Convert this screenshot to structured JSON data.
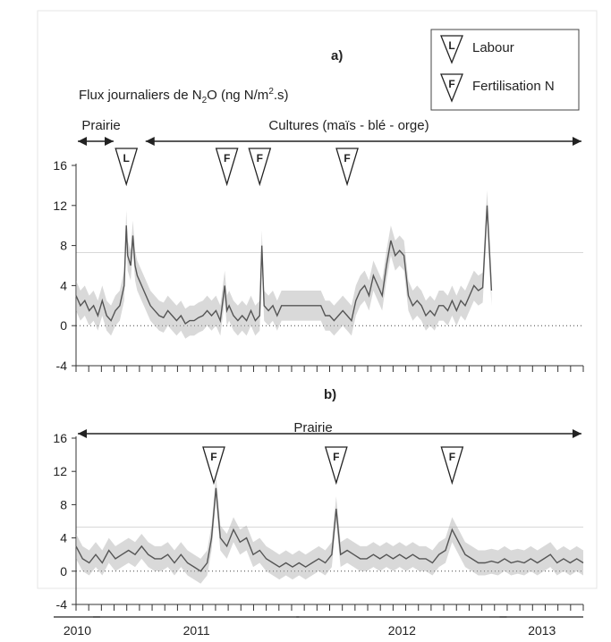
{
  "chart_data": [
    {
      "type": "line",
      "title": "a)",
      "ylabel_pre": "Flux journaliers de N",
      "ylabel_sub": "2",
      "ylabel_mid": "O (ng N/m",
      "ylabel_sup": "2",
      "ylabel_post": ".s)",
      "yticks": [
        16,
        12,
        8,
        4,
        0,
        -4
      ],
      "ylim": [
        -4,
        16
      ],
      "xlim": [
        0,
        1160
      ],
      "periods": [
        {
          "label": "Prairie",
          "x0": 0,
          "x1": 90
        },
        {
          "label": "Cultures (maïs - blé - orge)",
          "x0": 155,
          "x1": 1160
        }
      ],
      "events": [
        {
          "letter": "L",
          "x": 115
        },
        {
          "letter": "F",
          "x": 345
        },
        {
          "letter": "F",
          "x": 420
        },
        {
          "letter": "F",
          "x": 620
        }
      ],
      "legend": [
        {
          "letter": "L",
          "label": "Labour"
        },
        {
          "letter": "F",
          "label": "Fertilisation N"
        }
      ],
      "series": [
        {
          "values": [
            [
              0,
              3
            ],
            [
              10,
              2
            ],
            [
              20,
              2.5
            ],
            [
              30,
              1.5
            ],
            [
              40,
              2
            ],
            [
              50,
              1
            ],
            [
              60,
              2.5
            ],
            [
              70,
              1
            ],
            [
              80,
              0.5
            ],
            [
              90,
              1.5
            ],
            [
              100,
              2
            ],
            [
              110,
              4
            ],
            [
              115,
              10
            ],
            [
              118,
              7
            ],
            [
              125,
              6
            ],
            [
              130,
              9
            ],
            [
              135,
              6
            ],
            [
              140,
              5
            ],
            [
              150,
              4
            ],
            [
              160,
              3
            ],
            [
              170,
              2
            ],
            [
              180,
              1.5
            ],
            [
              190,
              1
            ],
            [
              200,
              0.8
            ],
            [
              210,
              1.5
            ],
            [
              220,
              1
            ],
            [
              230,
              0.5
            ],
            [
              240,
              1
            ],
            [
              250,
              0.2
            ],
            [
              260,
              0.5
            ],
            [
              270,
              0.5
            ],
            [
              280,
              0.8
            ],
            [
              290,
              1
            ],
            [
              300,
              1.5
            ],
            [
              310,
              1
            ],
            [
              320,
              1.5
            ],
            [
              330,
              0.5
            ],
            [
              340,
              4
            ],
            [
              345,
              1.5
            ],
            [
              350,
              2
            ],
            [
              360,
              1
            ],
            [
              370,
              0.5
            ],
            [
              380,
              1
            ],
            [
              390,
              0.5
            ],
            [
              400,
              1.5
            ],
            [
              410,
              0.5
            ],
            [
              420,
              1
            ],
            [
              425,
              8
            ],
            [
              430,
              2
            ],
            [
              440,
              1.5
            ],
            [
              450,
              2
            ],
            [
              460,
              1
            ],
            [
              470,
              2
            ],
            [
              480,
              2
            ],
            [
              490,
              2
            ],
            [
              500,
              2
            ],
            [
              510,
              2
            ],
            [
              520,
              2
            ],
            [
              530,
              2
            ],
            [
              540,
              2
            ],
            [
              550,
              2
            ],
            [
              560,
              2
            ],
            [
              570,
              1
            ],
            [
              580,
              1
            ],
            [
              590,
              0.5
            ],
            [
              600,
              1
            ],
            [
              610,
              1.5
            ],
            [
              620,
              1
            ],
            [
              630,
              0.5
            ],
            [
              640,
              2.5
            ],
            [
              650,
              3.5
            ],
            [
              660,
              4
            ],
            [
              670,
              3
            ],
            [
              680,
              5
            ],
            [
              690,
              4
            ],
            [
              700,
              3
            ],
            [
              710,
              6
            ],
            [
              720,
              8.5
            ],
            [
              730,
              7
            ],
            [
              740,
              7.5
            ],
            [
              750,
              7
            ],
            [
              760,
              3
            ],
            [
              770,
              2
            ],
            [
              780,
              2.5
            ],
            [
              790,
              2
            ],
            [
              800,
              1
            ],
            [
              810,
              1.5
            ],
            [
              820,
              1
            ],
            [
              830,
              2
            ],
            [
              840,
              2
            ],
            [
              850,
              1.5
            ],
            [
              860,
              2.5
            ],
            [
              870,
              1.5
            ],
            [
              880,
              2.5
            ],
            [
              890,
              2
            ],
            [
              900,
              3
            ],
            [
              910,
              4
            ],
            [
              920,
              3.5
            ],
            [
              930,
              3.8
            ],
            [
              940,
              12
            ],
            [
              950,
              3.5
            ]
          ]
        }
      ],
      "ref_line": 7.3
    },
    {
      "type": "line",
      "title": "b)",
      "yticks": [
        16,
        12,
        8,
        4,
        0,
        -4
      ],
      "ylim": [
        -4,
        16
      ],
      "xlim": [
        0,
        1160
      ],
      "periods": [
        {
          "label": "Prairie",
          "x0": 0,
          "x1": 1160
        }
      ],
      "events": [
        {
          "letter": "F",
          "x": 315
        },
        {
          "letter": "F",
          "x": 595
        },
        {
          "letter": "F",
          "x": 860
        }
      ],
      "series": [
        {
          "values": [
            [
              0,
              3
            ],
            [
              15,
              1.5
            ],
            [
              30,
              1
            ],
            [
              45,
              2
            ],
            [
              60,
              1
            ],
            [
              75,
              2.5
            ],
            [
              90,
              1.5
            ],
            [
              105,
              2
            ],
            [
              120,
              2.5
            ],
            [
              135,
              2
            ],
            [
              150,
              3
            ],
            [
              165,
              2
            ],
            [
              180,
              1.5
            ],
            [
              195,
              1.5
            ],
            [
              210,
              2
            ],
            [
              225,
              1
            ],
            [
              240,
              2
            ],
            [
              255,
              1
            ],
            [
              270,
              0.5
            ],
            [
              285,
              0
            ],
            [
              300,
              1
            ],
            [
              310,
              4
            ],
            [
              320,
              10
            ],
            [
              330,
              4
            ],
            [
              345,
              3
            ],
            [
              360,
              5
            ],
            [
              375,
              3.5
            ],
            [
              390,
              4
            ],
            [
              405,
              2
            ],
            [
              420,
              2.5
            ],
            [
              435,
              1.5
            ],
            [
              450,
              1
            ],
            [
              465,
              0.5
            ],
            [
              480,
              1
            ],
            [
              495,
              0.5
            ],
            [
              510,
              1
            ],
            [
              525,
              0.5
            ],
            [
              540,
              1
            ],
            [
              555,
              1.5
            ],
            [
              570,
              1
            ],
            [
              585,
              2
            ],
            [
              595,
              7.5
            ],
            [
              605,
              2
            ],
            [
              620,
              2.5
            ],
            [
              635,
              2
            ],
            [
              650,
              1.5
            ],
            [
              665,
              1.5
            ],
            [
              680,
              2
            ],
            [
              695,
              1.5
            ],
            [
              710,
              2
            ],
            [
              725,
              1.5
            ],
            [
              740,
              2
            ],
            [
              755,
              1.5
            ],
            [
              770,
              2
            ],
            [
              785,
              1.5
            ],
            [
              800,
              1.5
            ],
            [
              815,
              1
            ],
            [
              830,
              2
            ],
            [
              845,
              2.5
            ],
            [
              860,
              5
            ],
            [
              875,
              3.5
            ],
            [
              890,
              2
            ],
            [
              905,
              1.5
            ],
            [
              920,
              1
            ],
            [
              935,
              1
            ],
            [
              950,
              1.2
            ],
            [
              965,
              1
            ],
            [
              980,
              1.5
            ],
            [
              995,
              1
            ],
            [
              1010,
              1.2
            ],
            [
              1025,
              1
            ],
            [
              1040,
              1.5
            ],
            [
              1055,
              1
            ],
            [
              1070,
              1.5
            ],
            [
              1085,
              2
            ],
            [
              1100,
              1
            ],
            [
              1115,
              1.5
            ],
            [
              1130,
              1
            ],
            [
              1145,
              1.5
            ],
            [
              1160,
              1
            ]
          ]
        }
      ],
      "ref_line": 5.3
    }
  ],
  "years": [
    {
      "label": "2010",
      "x0": 0,
      "x1": 55
    },
    {
      "label": "2011",
      "x0": 90,
      "x1": 510
    },
    {
      "label": "2012",
      "x0": 555,
      "x1": 985
    },
    {
      "label": "2013",
      "x0": 1020,
      "x1": 1160
    }
  ],
  "colors": {
    "line": "#555555",
    "band": "#aaaaaa",
    "frame": "#e6e6e6",
    "axis": "#333333"
  }
}
